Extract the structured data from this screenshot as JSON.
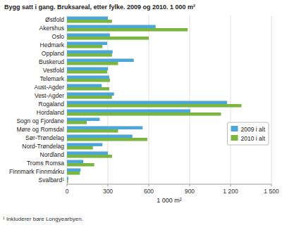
{
  "chart_data": {
    "type": "bar",
    "orientation": "horizontal",
    "title": "Bygg satt i gang. Bruksareal, etter fylke. 2009 og 2010. 1 000 m²",
    "categories": [
      "Østfold",
      "Akershus",
      "Oslo",
      "Hedmark",
      "Oppland",
      "Buskerud",
      "Vestfold",
      "Telemark",
      "Aust-Agder",
      "Vest-Agder",
      "Rogaland",
      "Hordaland",
      "Sogn og Fjordane",
      "Møre og Romsdal",
      "Sør-Trøndelag",
      "Nord-Trøndelag",
      "Nordland",
      "Troms Romsa",
      "Finnmark Finnmárku",
      "Svalbard¹"
    ],
    "series": [
      {
        "name": "2009 i alt",
        "color": "#4da6d8",
        "values": [
          300,
          650,
          315,
          295,
          335,
          490,
          300,
          310,
          255,
          345,
          1175,
          905,
          240,
          555,
          480,
          260,
          300,
          120,
          100,
          10
        ]
      },
      {
        "name": "2010 i alt",
        "color": "#7ab540",
        "values": [
          330,
          885,
          600,
          260,
          330,
          375,
          295,
          315,
          310,
          330,
          1280,
          1130,
          145,
          375,
          590,
          190,
          330,
          200,
          95,
          8
        ]
      }
    ],
    "xlabel": "1 000 m²",
    "xlim": [
      0,
      1500
    ],
    "xticks": [
      0,
      300,
      600,
      900,
      {
        "value": 1200,
        "label": "1 200"
      },
      {
        "value": 1500,
        "label": "1 500"
      }
    ],
    "grid": true,
    "legend": "right",
    "annotations": [
      "¹  Inkluderer bare Longyearbyen."
    ]
  }
}
